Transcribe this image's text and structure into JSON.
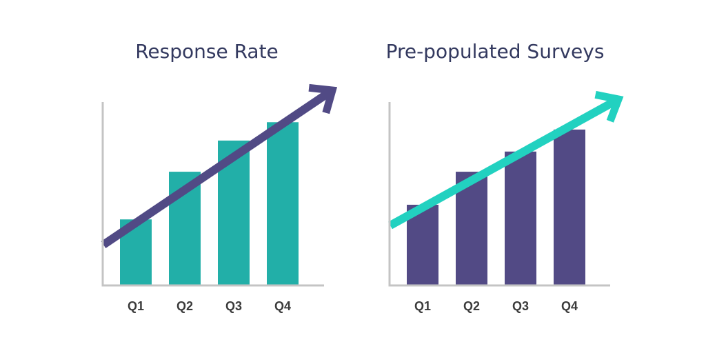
{
  "chart_data": [
    {
      "type": "bar",
      "title": "Response Rate",
      "categories": [
        "Q1",
        "Q2",
        "Q3",
        "Q4"
      ],
      "values": [
        36,
        62,
        79,
        89
      ],
      "ylim": [
        0,
        100
      ],
      "xlabel": "",
      "ylabel": "",
      "bar_color": "#22afa8",
      "trend_arrow_color": "#514a85",
      "axis_color": "#c4c4c4",
      "trend": "up"
    },
    {
      "type": "bar",
      "title": "Pre-populated Surveys",
      "categories": [
        "Q1",
        "Q2",
        "Q3",
        "Q4"
      ],
      "values": [
        44,
        62,
        73,
        85
      ],
      "ylim": [
        0,
        100
      ],
      "xlabel": "",
      "ylabel": "",
      "bar_color": "#524a85",
      "trend_arrow_color": "#22d1c0",
      "axis_color": "#c4c4c4",
      "trend": "up"
    }
  ]
}
